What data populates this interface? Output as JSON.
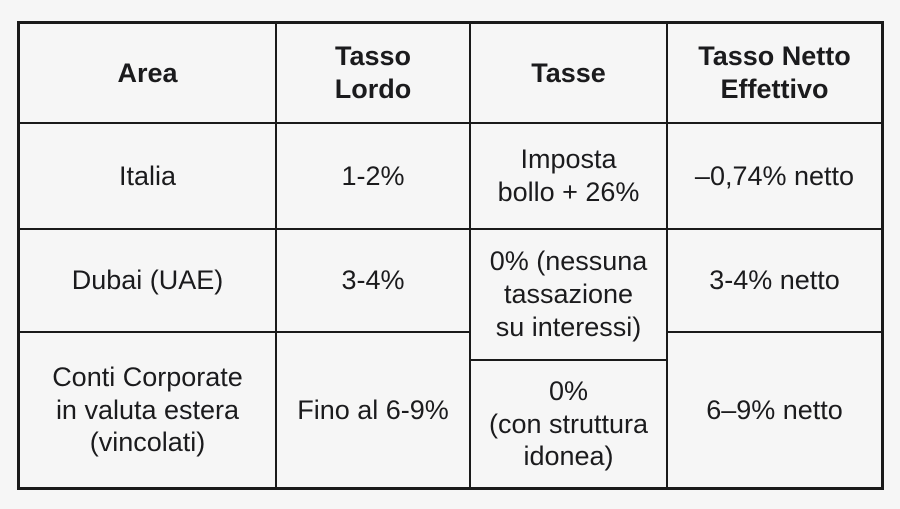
{
  "colors": {
    "background": "#f6f6f6",
    "line": "#1a1a1a",
    "text": "#1b1b1d"
  },
  "table": {
    "columns": [
      {
        "header": "Area",
        "cells": [
          "Italia",
          "Dubai (UAE)",
          "Conti Corporate\nin valuta estera\n(vincolati)"
        ]
      },
      {
        "header": "Tasso\nLordo",
        "cells": [
          "1-2%",
          "3-4%",
          "Fino al 6-9%"
        ]
      },
      {
        "header": "Tasse",
        "cells": [
          "Imposta\nbollo + 26%",
          "0% (nessuna\ntassazione\nsu interessi)",
          "0%\n(con struttura\nidonea)"
        ]
      },
      {
        "header": "Tasso Netto\nEffettivo",
        "cells": [
          "–0,74% netto",
          "3-4% netto",
          "6–9% netto"
        ]
      }
    ]
  },
  "chart_data": {
    "type": "table",
    "title": "",
    "columns": [
      "Area",
      "Tasso Lordo",
      "Tasse",
      "Tasso Netto Effettivo"
    ],
    "rows": [
      [
        "Italia",
        "1-2%",
        "Imposta bollo + 26%",
        "–0,74% netto"
      ],
      [
        "Dubai (UAE)",
        "3-4%",
        "0% (nessuna tassazione su interessi)",
        "3-4% netto"
      ],
      [
        "Conti Corporate in valuta estera (vincolati)",
        "Fino al 6-9%",
        "0% (con struttura idonea)",
        "6–9% netto"
      ]
    ],
    "layout_notes": "Grid table, header row bold; the row divider between rows 2 and 3 inside the Tasse column sits lower than in the other columns"
  }
}
